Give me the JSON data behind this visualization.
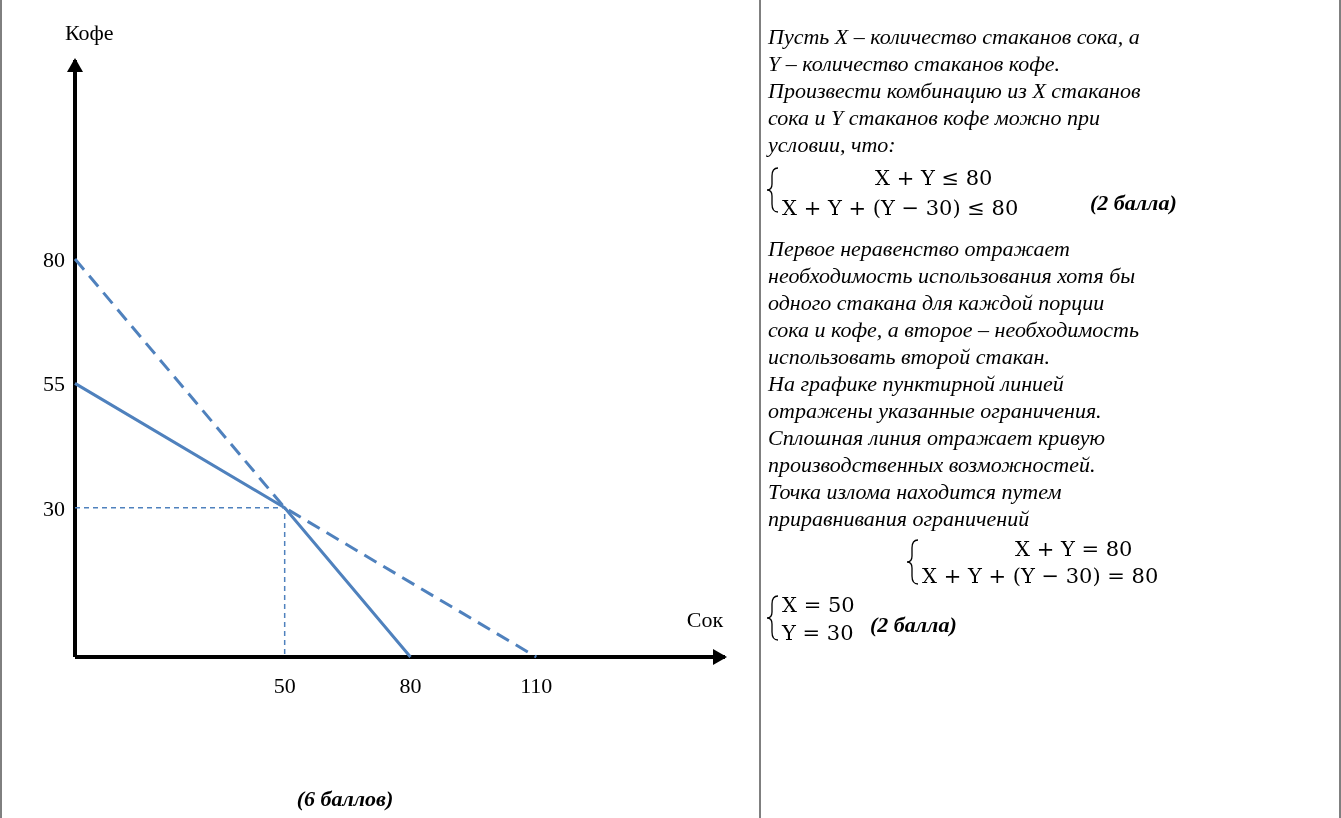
{
  "chart_data": {
    "type": "line",
    "xlabel": "Сок",
    "ylabel": "Кофе",
    "xlim": [
      0,
      155
    ],
    "ylim": [
      0,
      120
    ],
    "xticks": [
      50,
      80,
      110
    ],
    "yticks": [
      30,
      55,
      80
    ],
    "grid": false,
    "marker": "none",
    "series": [
      {
        "color": "#4f81bd",
        "line_style": "solid",
        "x": [
          0,
          50,
          80
        ],
        "values": [
          55,
          30,
          0
        ]
      },
      {
        "color": "#4f81bd",
        "line_style": "dashed",
        "x": [
          0,
          50,
          110
        ],
        "values": [
          80,
          30,
          0
        ]
      },
      {
        "color": "#4f81bd",
        "line_style": "dotted",
        "x": [
          0,
          50,
          50
        ],
        "values": [
          30,
          30,
          0
        ]
      }
    ],
    "annotations": [
      "Пусть X – количество стаканов сока, а",
      "Y – количество стаканов кофе.",
      "Произвести комбинацию из X стаканов",
      "сока и Y стаканов кофе можно при",
      "условии, что:",
      "X + Y ≤ 80",
      "X + Y + (Y − 30) ≤ 80",
      "(2 балла)",
      "Первое неравенство отражает",
      "необходимость использования хотя бы",
      "одного стакана для каждой порции",
      "сока и кофе, а второе – необходимость",
      "использовать второй стакан.",
      "На графике пунктирной линией",
      "отражены указанные ограничения.",
      "Сплошная линия отражает кривую",
      "производственных возможностей.",
      "Точка излома находится путем",
      "приравнивания ограничений",
      "X + Y = 80",
      "X + Y + (Y − 30) = 80",
      "X = 50",
      "Y = 30",
      "(2 балла)",
      "(6 баллов)"
    ]
  }
}
